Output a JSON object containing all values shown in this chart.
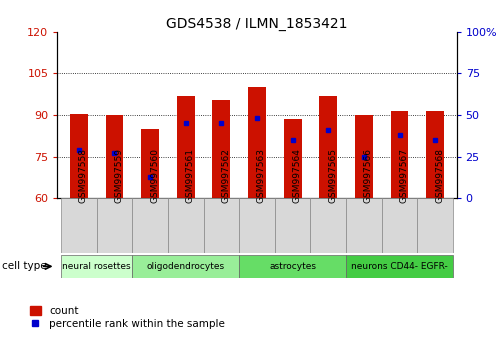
{
  "title": "GDS4538 / ILMN_1853421",
  "samples": [
    "GSM997558",
    "GSM997559",
    "GSM997560",
    "GSM997561",
    "GSM997562",
    "GSM997563",
    "GSM997564",
    "GSM997565",
    "GSM997566",
    "GSM997567",
    "GSM997568"
  ],
  "bar_heights": [
    90.5,
    90.0,
    85.0,
    97.0,
    95.5,
    100.0,
    88.5,
    97.0,
    90.0,
    91.5,
    91.5
  ],
  "percentile_ranks": [
    29,
    27,
    13,
    45,
    45,
    48,
    35,
    41,
    25,
    38,
    35
  ],
  "ylim_left": [
    60,
    120
  ],
  "ylim_right": [
    0,
    100
  ],
  "yticks_left": [
    60,
    75,
    90,
    105,
    120
  ],
  "yticks_right": [
    0,
    25,
    50,
    75,
    100
  ],
  "bar_color": "#cc1100",
  "dot_color": "#0000cc",
  "bar_width": 0.5,
  "cell_type_groups": [
    {
      "label": "neural rosettes",
      "indices": [
        0,
        1
      ],
      "color": "#ccffcc"
    },
    {
      "label": "oligodendrocytes",
      "indices": [
        2,
        3,
        4
      ],
      "color": "#99ee99"
    },
    {
      "label": "astrocytes",
      "indices": [
        5,
        6,
        7
      ],
      "color": "#66dd66"
    },
    {
      "label": "neurons CD44- EGFR-",
      "indices": [
        8,
        9,
        10
      ],
      "color": "#44cc44"
    }
  ],
  "tick_label_color_left": "#cc1100",
  "tick_label_color_right": "#0000cc"
}
